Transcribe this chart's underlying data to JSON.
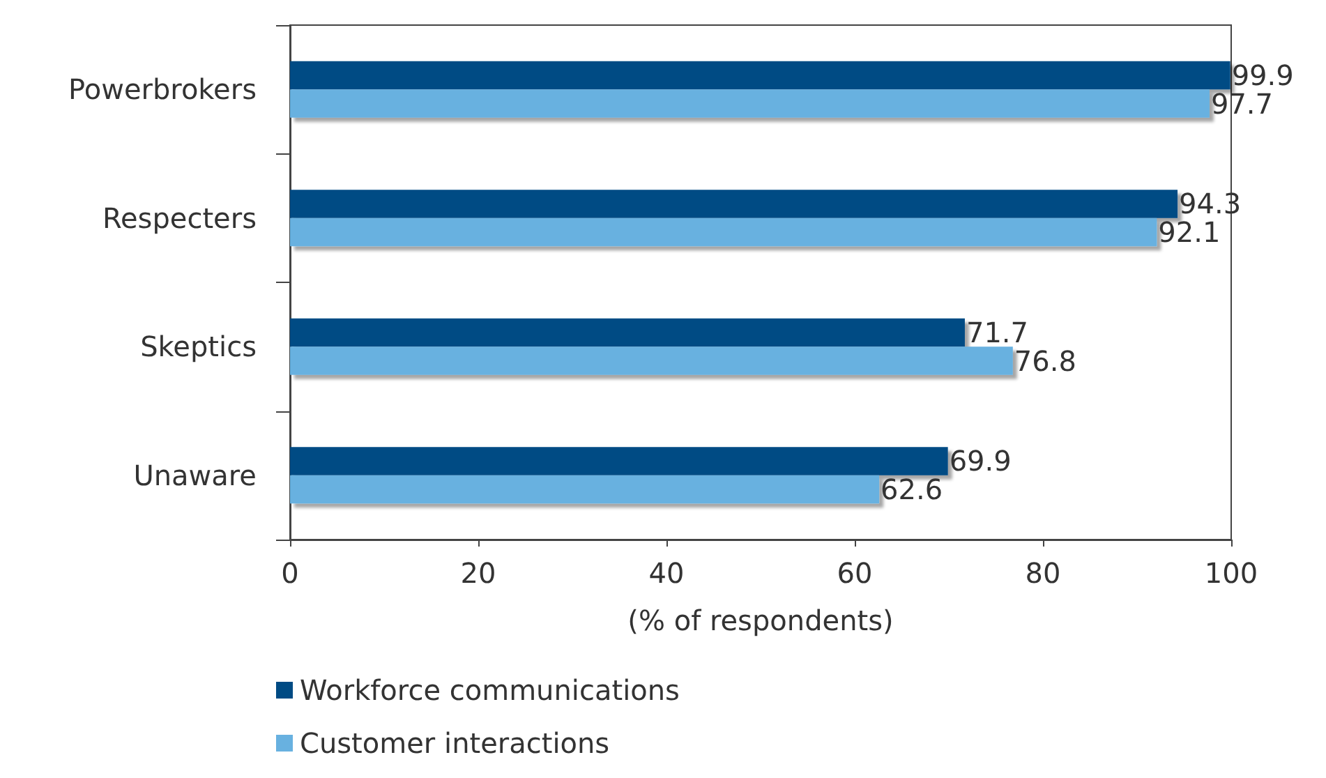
{
  "chart_data": {
    "type": "bar",
    "orientation": "horizontal",
    "categories": [
      "Powerbrokers",
      "Respecters",
      "Skeptics",
      "Unaware"
    ],
    "series": [
      {
        "name": "Workforce communications",
        "color": "#004b84",
        "values": [
          99.9,
          94.3,
          71.7,
          69.9
        ]
      },
      {
        "name": "Customer interactions",
        "color": "#68b1e0",
        "values": [
          97.7,
          92.1,
          76.8,
          62.6
        ]
      }
    ],
    "xlabel": "(% of respondents)",
    "xlim": [
      0,
      100
    ],
    "xticks": [
      0,
      20,
      40,
      60,
      80,
      100
    ],
    "data_labels": true,
    "legend": "bottom",
    "grid": false
  }
}
